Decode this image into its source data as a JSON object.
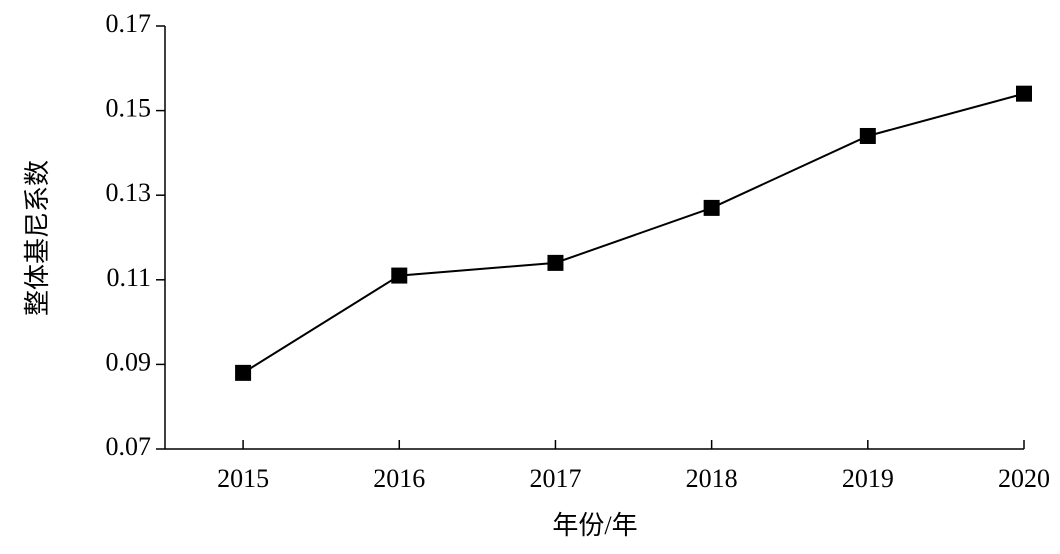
{
  "chart_data": {
    "type": "line",
    "x": [
      2015,
      2016,
      2017,
      2018,
      2019,
      2020
    ],
    "values": [
      0.088,
      0.111,
      0.114,
      0.127,
      0.144,
      0.154
    ],
    "color": "#000000",
    "xlabel": "年份/年",
    "ylabel": "整体基尼系数",
    "xlim": [
      2014.5,
      2020
    ],
    "xticks": [
      2015,
      2016,
      2017,
      2018,
      2019,
      2020
    ],
    "ylim": [
      0.07,
      0.17
    ],
    "yticks": [
      0.07,
      0.09,
      0.11,
      0.13,
      0.15,
      0.17
    ],
    "marker": "square"
  }
}
